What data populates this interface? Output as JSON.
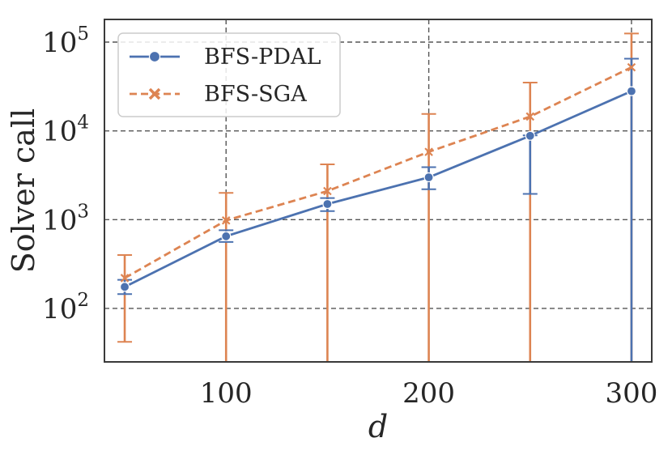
{
  "chart_data": {
    "type": "line",
    "xlabel": "d",
    "ylabel": "Solver call",
    "x": [
      50,
      100,
      150,
      200,
      250,
      300
    ],
    "xlim": [
      40,
      310
    ],
    "ylim": [
      25,
      180000
    ],
    "yscale": "log",
    "xticks": [
      100,
      200,
      300
    ],
    "xtick_labels": [
      "100",
      "200",
      "300"
    ],
    "yticks": [
      100,
      1000,
      10000,
      100000
    ],
    "ytick_bases": [
      "10",
      "10",
      "10",
      "10"
    ],
    "ytick_exponents": [
      "2",
      "3",
      "4",
      "5"
    ],
    "grid": true,
    "legend_position": "top-left",
    "series": [
      {
        "name": "BFS-PDAL",
        "color": "#4c72b0",
        "linestyle": "solid",
        "marker": "circle",
        "values": [
          175,
          650,
          1500,
          3000,
          8800,
          28000
        ],
        "err_low": [
          145,
          560,
          1250,
          2200,
          1950,
          25
        ],
        "err_high": [
          210,
          760,
          1750,
          3900,
          8900,
          65000
        ]
      },
      {
        "name": "BFS-SGA",
        "color": "#dd8452",
        "linestyle": "dashed",
        "marker": "x",
        "values": [
          220,
          980,
          2100,
          5800,
          14500,
          52000
        ],
        "err_low": [
          42,
          25,
          25,
          25,
          25,
          25
        ],
        "err_high": [
          400,
          2000,
          4200,
          15500,
          35000,
          125000
        ]
      }
    ]
  }
}
